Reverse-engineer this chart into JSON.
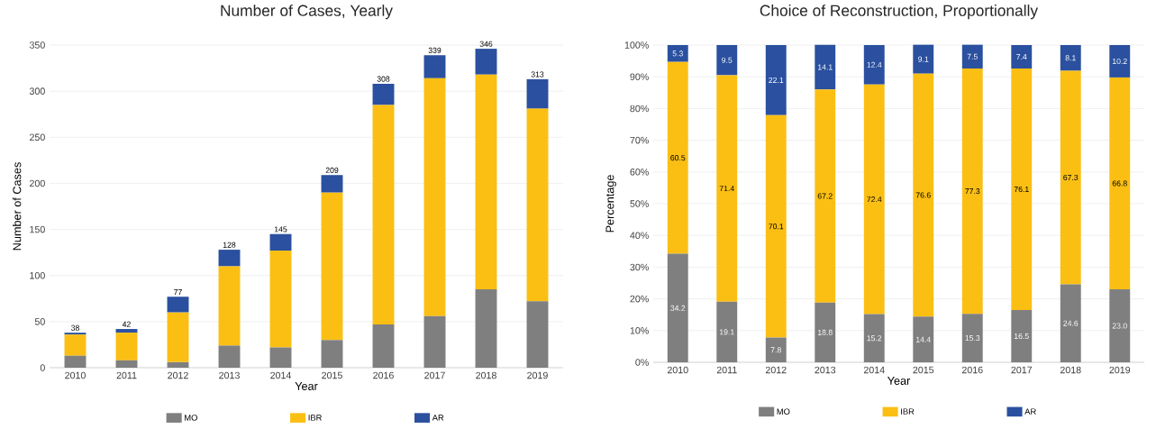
{
  "chart_data": [
    {
      "type": "bar",
      "title": "Number of Cases, Yearly",
      "xlabel": "Year",
      "ylabel": "Number of Cases",
      "stacked": true,
      "grid": "y",
      "legend": "bottom",
      "categories": [
        "2010",
        "2011",
        "2012",
        "2013",
        "2014",
        "2015",
        "2016",
        "2017",
        "2018",
        "2019"
      ],
      "series": [
        {
          "name": "MO",
          "color": "#7f7f7f",
          "values": [
            13,
            8,
            6,
            24,
            22,
            30,
            47,
            56,
            85,
            72
          ]
        },
        {
          "name": "IBR",
          "color": "#fbbf14",
          "values": [
            23,
            30,
            54,
            86,
            105,
            160,
            238,
            258,
            233,
            209
          ]
        },
        {
          "name": "AR",
          "color": "#2a509f",
          "values": [
            2,
            4,
            17,
            18,
            18,
            19,
            23,
            25,
            28,
            32
          ]
        }
      ],
      "totals": [
        "38",
        "42",
        "77",
        "128",
        "145",
        "209",
        "308",
        "339",
        "346",
        "313"
      ],
      "ylim": [
        0,
        350
      ],
      "yticks": [
        0,
        50,
        100,
        150,
        200,
        250,
        300,
        350
      ]
    },
    {
      "type": "bar",
      "title": "Choice of Reconstruction, Proportionally",
      "xlabel": "Year",
      "ylabel": "Percentage",
      "stacked": true,
      "grid": "y",
      "legend": "bottom",
      "categories": [
        "2010",
        "2011",
        "2012",
        "2013",
        "2014",
        "2015",
        "2016",
        "2017",
        "2018",
        "2019"
      ],
      "series": [
        {
          "name": "MO",
          "color": "#7f7f7f",
          "values": [
            34.2,
            19.1,
            7.8,
            18.8,
            15.2,
            14.4,
            15.3,
            16.5,
            24.6,
            23.0
          ],
          "value_labels": [
            "34.2",
            "19.1",
            "7.8",
            "18.8",
            "15.2",
            "14.4",
            "15.3",
            "16.5",
            "24.6",
            "23.0"
          ]
        },
        {
          "name": "IBR",
          "color": "#fbbf14",
          "values": [
            60.5,
            71.4,
            70.1,
            67.2,
            72.4,
            76.6,
            77.3,
            76.1,
            67.3,
            66.8
          ],
          "value_labels": [
            "60.5",
            "71.4",
            "70.1",
            "67.2",
            "72.4",
            "76.6",
            "77.3",
            "76.1",
            "67.3",
            "66.8"
          ]
        },
        {
          "name": "AR",
          "color": "#2a509f",
          "values": [
            5.3,
            9.5,
            22.1,
            14.1,
            12.4,
            9.1,
            7.5,
            7.4,
            8.1,
            10.2
          ],
          "value_labels": [
            "5.3",
            "9.5",
            "22.1",
            "14.1",
            "12.4",
            "9.1",
            "7.5",
            "7.4",
            "8.1",
            "10.2"
          ]
        }
      ],
      "ylim": [
        0,
        100
      ],
      "yticks": [
        {
          "value": 0,
          "label": "0%"
        },
        {
          "value": 10,
          "label": "10%"
        },
        {
          "value": 20,
          "label": "20%"
        },
        {
          "value": 30,
          "label": "30%"
        },
        {
          "value": 40,
          "label": "40%"
        },
        {
          "value": 50,
          "label": "50%"
        },
        {
          "value": 60,
          "label": "60%"
        },
        {
          "value": 70,
          "label": "70%"
        },
        {
          "value": 80,
          "label": "80%"
        },
        {
          "value": 90,
          "label": "90%"
        },
        {
          "value": 100,
          "label": "100%"
        }
      ]
    }
  ]
}
